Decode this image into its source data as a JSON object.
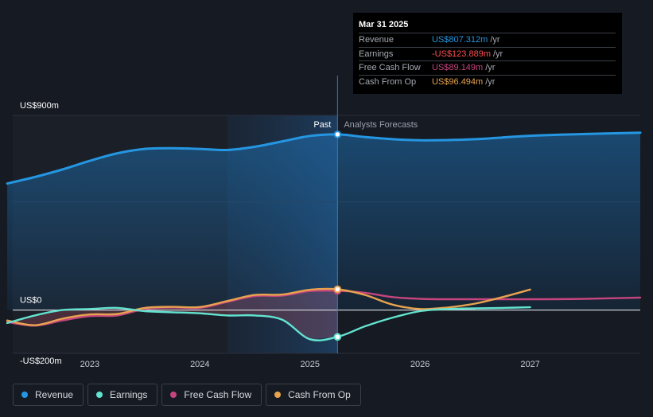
{
  "colors": {
    "background": "#151a23",
    "revenue": "#2596e1",
    "earnings": "#63e3cf",
    "fcf": "#c7457e",
    "cfo": "#e8a34f",
    "negative": "#ff4d4d"
  },
  "tooltip": {
    "date": "Mar 31 2025",
    "rows": [
      {
        "label": "Revenue",
        "value": "US$807.312m",
        "unit": "/yr",
        "color": "#2596e1"
      },
      {
        "label": "Earnings",
        "value": "-US$123.889m",
        "unit": "/yr",
        "color": "#ff4d4d"
      },
      {
        "label": "Free Cash Flow",
        "value": "US$89.149m",
        "unit": "/yr",
        "color": "#c7457e"
      },
      {
        "label": "Cash From Op",
        "value": "US$96.494m",
        "unit": "/yr",
        "color": "#e8a34f"
      }
    ]
  },
  "legend": [
    {
      "label": "Revenue",
      "color": "#2596e1"
    },
    {
      "label": "Earnings",
      "color": "#63e3cf"
    },
    {
      "label": "Free Cash Flow",
      "color": "#c7457e"
    },
    {
      "label": "Cash From Op",
      "color": "#e8a34f"
    }
  ],
  "chart_data": {
    "type": "line",
    "title": "",
    "xlabel": "",
    "ylabel": "",
    "xlim": [
      2022.3,
      2028.0
    ],
    "ylim": [
      -200,
      900
    ],
    "y_labels": [
      {
        "value": 900,
        "text": "US$900m"
      },
      {
        "value": 0,
        "text": "US$0"
      },
      {
        "value": -200,
        "text": "-US$200m"
      }
    ],
    "x_ticks": [
      {
        "value": 2023,
        "text": "2023"
      },
      {
        "value": 2024,
        "text": "2024"
      },
      {
        "value": 2025,
        "text": "2025"
      },
      {
        "value": 2026,
        "text": "2026"
      },
      {
        "value": 2027,
        "text": "2027"
      }
    ],
    "divider": 2025.25,
    "past_label": "Past",
    "forecast_label": "Analysts Forecasts",
    "series": [
      {
        "name": "Revenue",
        "key": "revenue",
        "color": "#2596e1",
        "area": true,
        "x": [
          2022.25,
          2022.5,
          2022.75,
          2023.0,
          2023.25,
          2023.5,
          2023.75,
          2024.0,
          2024.25,
          2024.5,
          2024.75,
          2025.0,
          2025.25,
          2025.5,
          2025.75,
          2026.0,
          2026.25,
          2026.5,
          2026.75,
          2027.0,
          2027.5,
          2028.0
        ],
        "values": [
          585,
          615,
          650,
          690,
          725,
          745,
          748,
          745,
          740,
          755,
          780,
          805,
          812,
          800,
          790,
          785,
          786,
          790,
          798,
          806,
          814,
          820
        ]
      },
      {
        "name": "Earnings",
        "key": "earnings",
        "color": "#63e3cf",
        "area": false,
        "x": [
          2022.25,
          2022.5,
          2022.75,
          2023.0,
          2023.25,
          2023.5,
          2023.75,
          2024.0,
          2024.25,
          2024.5,
          2024.75,
          2025.0,
          2025.25,
          2025.5,
          2025.75,
          2026.0,
          2026.25,
          2026.5,
          2026.75,
          2027.0
        ],
        "values": [
          -60,
          -25,
          0,
          5,
          10,
          -5,
          -10,
          -15,
          -25,
          -25,
          -45,
          -135,
          -124,
          -75,
          -35,
          -5,
          5,
          8,
          10,
          13
        ]
      },
      {
        "name": "Free Cash Flow",
        "key": "fcf",
        "color": "#c7457e",
        "area": false,
        "x": [
          2022.25,
          2022.5,
          2022.75,
          2023.0,
          2023.25,
          2023.5,
          2023.75,
          2024.0,
          2024.25,
          2024.5,
          2024.75,
          2025.0,
          2025.25,
          2025.5,
          2025.75,
          2026.0,
          2026.25,
          2026.5,
          2026.75,
          2027.0,
          2027.5,
          2028.0
        ],
        "values": [
          -55,
          -72,
          -48,
          -28,
          -25,
          5,
          12,
          10,
          38,
          65,
          67,
          88,
          89,
          80,
          60,
          52,
          50,
          50,
          50,
          50,
          52,
          58
        ]
      },
      {
        "name": "Cash From Op",
        "key": "cfo",
        "color": "#e8a34f",
        "area": false,
        "x": [
          2022.25,
          2022.5,
          2022.75,
          2023.0,
          2023.25,
          2023.5,
          2023.75,
          2024.0,
          2024.25,
          2024.5,
          2024.75,
          2025.0,
          2025.25,
          2025.5,
          2025.75,
          2026.0,
          2026.25,
          2026.5,
          2026.75,
          2027.0
        ],
        "values": [
          -48,
          -70,
          -40,
          -20,
          -18,
          10,
          15,
          14,
          42,
          70,
          72,
          94,
          96,
          70,
          25,
          5,
          12,
          30,
          60,
          95
        ]
      }
    ]
  }
}
